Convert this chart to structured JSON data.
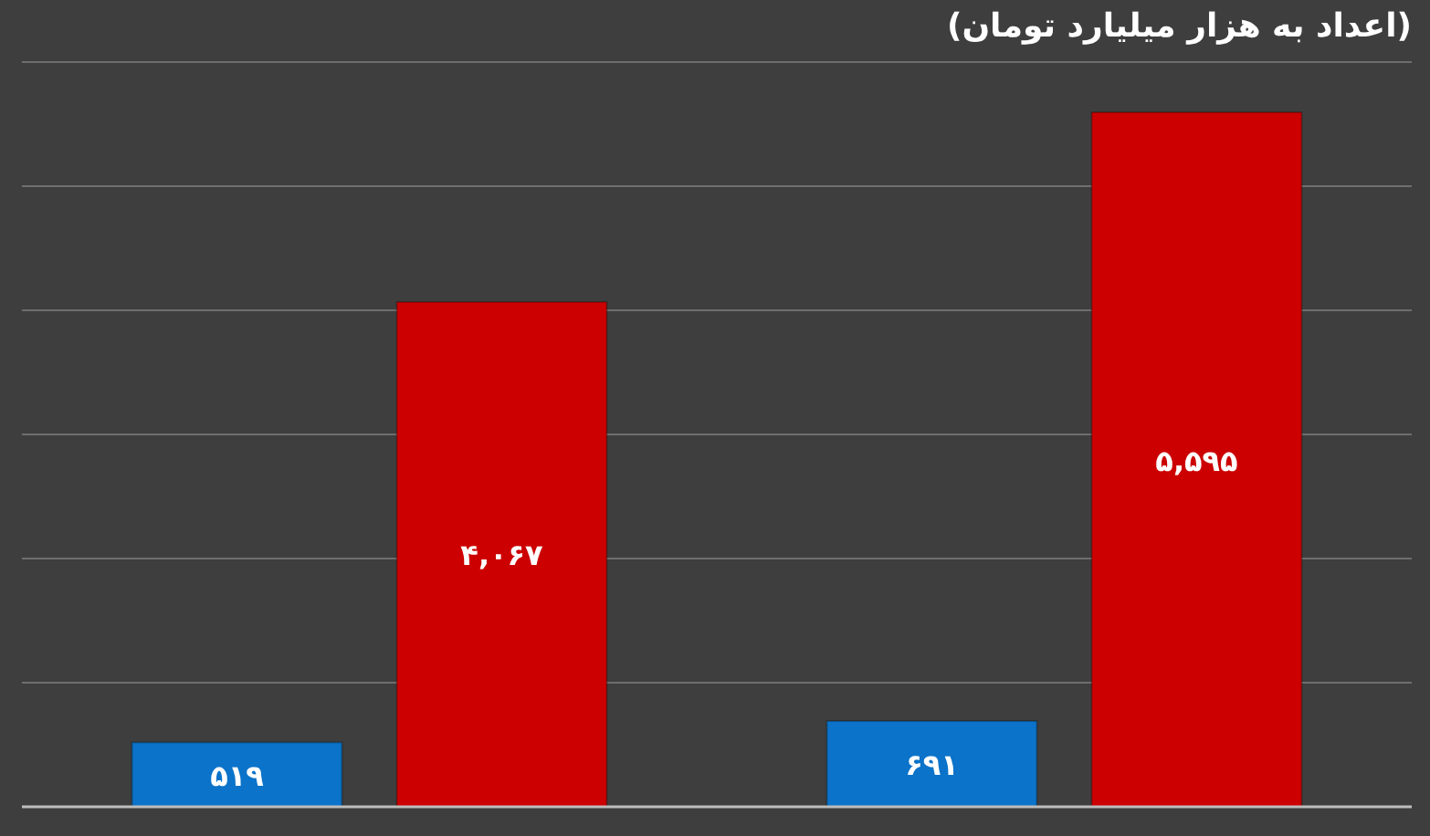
{
  "chart_data": {
    "type": "bar",
    "title": "(اعداد به هزار میلیارد تومان)",
    "categories": [
      null,
      null
    ],
    "series": [
      {
        "color": "#0b73c9",
        "values": [
          519,
          691
        ],
        "value_labels": [
          "۵۱۹",
          "۶۹۱"
        ]
      },
      {
        "color": "#cc0000",
        "values": [
          4067,
          5595
        ],
        "value_labels": [
          "۴,۰۶۷",
          "۵,۵۹۵"
        ]
      }
    ],
    "ylim": [
      0,
      6000
    ],
    "yticks": [
      {
        "value": 0,
        "label": null
      },
      {
        "value": 1000,
        "label": null
      },
      {
        "value": 2000,
        "label": null
      },
      {
        "value": 3000,
        "label": null
      },
      {
        "value": 4000,
        "label": null
      },
      {
        "value": 5000,
        "label": null
      },
      {
        "value": 6000,
        "label": null
      }
    ],
    "grid": "y"
  }
}
